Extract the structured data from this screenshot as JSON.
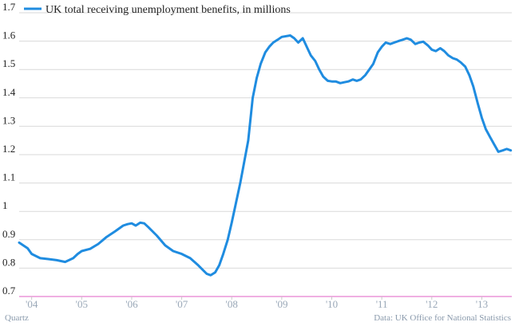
{
  "chart_data": {
    "type": "line",
    "title": "",
    "xlabel": "",
    "ylabel": "",
    "ylim": [
      0.7,
      1.7
    ],
    "yticks": [
      0.7,
      0.8,
      0.9,
      1,
      1.1,
      1.2,
      1.3,
      1.4,
      1.5,
      1.6,
      1.7
    ],
    "ytick_labels": [
      "0.7",
      "0.8",
      "0.9",
      "1",
      "1.1",
      "1.2",
      "1.3",
      "1.4",
      "1.5",
      "1.6",
      "1.7"
    ],
    "xlim": [
      2003.75,
      2013.6
    ],
    "xticks": [
      2004,
      2005,
      2006,
      2007,
      2008,
      2009,
      2010,
      2011,
      2012,
      2013
    ],
    "xtick_labels": [
      "'04",
      "'05",
      "'06",
      "'07",
      "'08",
      "'09",
      "'10",
      "'11",
      "'12",
      "'13"
    ],
    "grid": true,
    "legend_position": "top-left",
    "line_color": "#1f8ce0",
    "series": [
      {
        "name": "UK total receiving unemployment benefits, in millions",
        "x": [
          2003.75,
          2003.92,
          2004.0,
          2004.17,
          2004.33,
          2004.5,
          2004.67,
          2004.83,
          2004.92,
          2005.0,
          2005.17,
          2005.33,
          2005.5,
          2005.67,
          2005.83,
          2005.92,
          2006.0,
          2006.08,
          2006.17,
          2006.25,
          2006.33,
          2006.5,
          2006.67,
          2006.83,
          2007.0,
          2007.17,
          2007.33,
          2007.5,
          2007.58,
          2007.67,
          2007.75,
          2007.83,
          2007.92,
          2008.0,
          2008.17,
          2008.33,
          2008.42,
          2008.5,
          2008.58,
          2008.67,
          2008.75,
          2008.83,
          2008.92,
          2009.0,
          2009.17,
          2009.25,
          2009.33,
          2009.42,
          2009.5,
          2009.58,
          2009.67,
          2009.75,
          2009.83,
          2009.92,
          2010.0,
          2010.08,
          2010.17,
          2010.25,
          2010.33,
          2010.42,
          2010.5,
          2010.58,
          2010.67,
          2010.75,
          2010.83,
          2010.92,
          2011.0,
          2011.08,
          2011.17,
          2011.25,
          2011.33,
          2011.42,
          2011.5,
          2011.58,
          2011.67,
          2011.75,
          2011.83,
          2011.92,
          2012.0,
          2012.08,
          2012.17,
          2012.25,
          2012.33,
          2012.42,
          2012.5,
          2012.58,
          2012.67,
          2012.75,
          2012.83,
          2012.92,
          2013.0,
          2013.08,
          2013.17,
          2013.25,
          2013.33,
          2013.42,
          2013.5,
          2013.58
        ],
        "values": [
          0.89,
          0.87,
          0.85,
          0.835,
          0.832,
          0.828,
          0.822,
          0.835,
          0.85,
          0.86,
          0.868,
          0.885,
          0.91,
          0.93,
          0.95,
          0.955,
          0.958,
          0.95,
          0.96,
          0.958,
          0.945,
          0.915,
          0.88,
          0.86,
          0.85,
          0.835,
          0.81,
          0.78,
          0.775,
          0.785,
          0.81,
          0.85,
          0.9,
          0.96,
          1.1,
          1.25,
          1.4,
          1.47,
          1.52,
          1.56,
          1.58,
          1.595,
          1.605,
          1.615,
          1.62,
          1.61,
          1.595,
          1.61,
          1.58,
          1.55,
          1.53,
          1.5,
          1.475,
          1.46,
          1.458,
          1.458,
          1.452,
          1.455,
          1.458,
          1.465,
          1.46,
          1.465,
          1.48,
          1.5,
          1.52,
          1.56,
          1.58,
          1.595,
          1.59,
          1.595,
          1.6,
          1.605,
          1.61,
          1.605,
          1.59,
          1.595,
          1.598,
          1.585,
          1.57,
          1.565,
          1.575,
          1.565,
          1.55,
          1.54,
          1.535,
          1.525,
          1.51,
          1.48,
          1.44,
          1.38,
          1.33,
          1.29,
          1.26,
          1.235,
          1.21,
          1.215,
          1.22,
          1.215
        ]
      }
    ]
  },
  "footer": {
    "source_left": "Quartz",
    "source_right": "Data: UK Office for National Statistics"
  }
}
